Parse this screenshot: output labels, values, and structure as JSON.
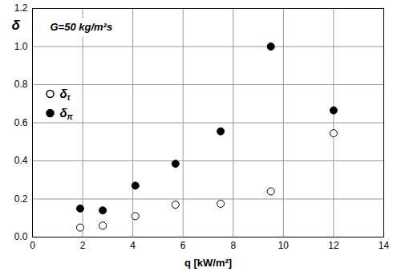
{
  "chart_data": {
    "type": "scatter",
    "annotation": "G=50 kg/m²s",
    "x_label": "q [kW/m²]",
    "y_label": "δ",
    "xlim": [
      0,
      14
    ],
    "xticks": [
      0,
      2,
      4,
      6,
      8,
      10,
      12,
      14
    ],
    "ylim": [
      0,
      1.2
    ],
    "yticks": [
      {
        "value": 0,
        "label": "0.0"
      },
      0.2,
      0.4,
      0.6,
      0.8,
      {
        "value": 1,
        "label": "1.0"
      },
      1.2
    ],
    "grid": true,
    "legend": "left",
    "series": [
      {
        "name": "δτ",
        "color": "#000000",
        "marker": "circle-open",
        "x": [
          1.9,
          2.8,
          4.1,
          5.7,
          7.5,
          9.5,
          12.0
        ],
        "values": [
          0.05,
          0.06,
          0.11,
          0.17,
          0.175,
          0.24,
          0.545
        ]
      },
      {
        "name": "δπ",
        "color": "#000000",
        "marker": "circle",
        "x": [
          1.9,
          2.8,
          4.1,
          5.7,
          7.5,
          9.5,
          12.0
        ],
        "values": [
          0.15,
          0.14,
          0.27,
          0.385,
          0.555,
          1.0,
          0.665
        ]
      }
    ]
  }
}
